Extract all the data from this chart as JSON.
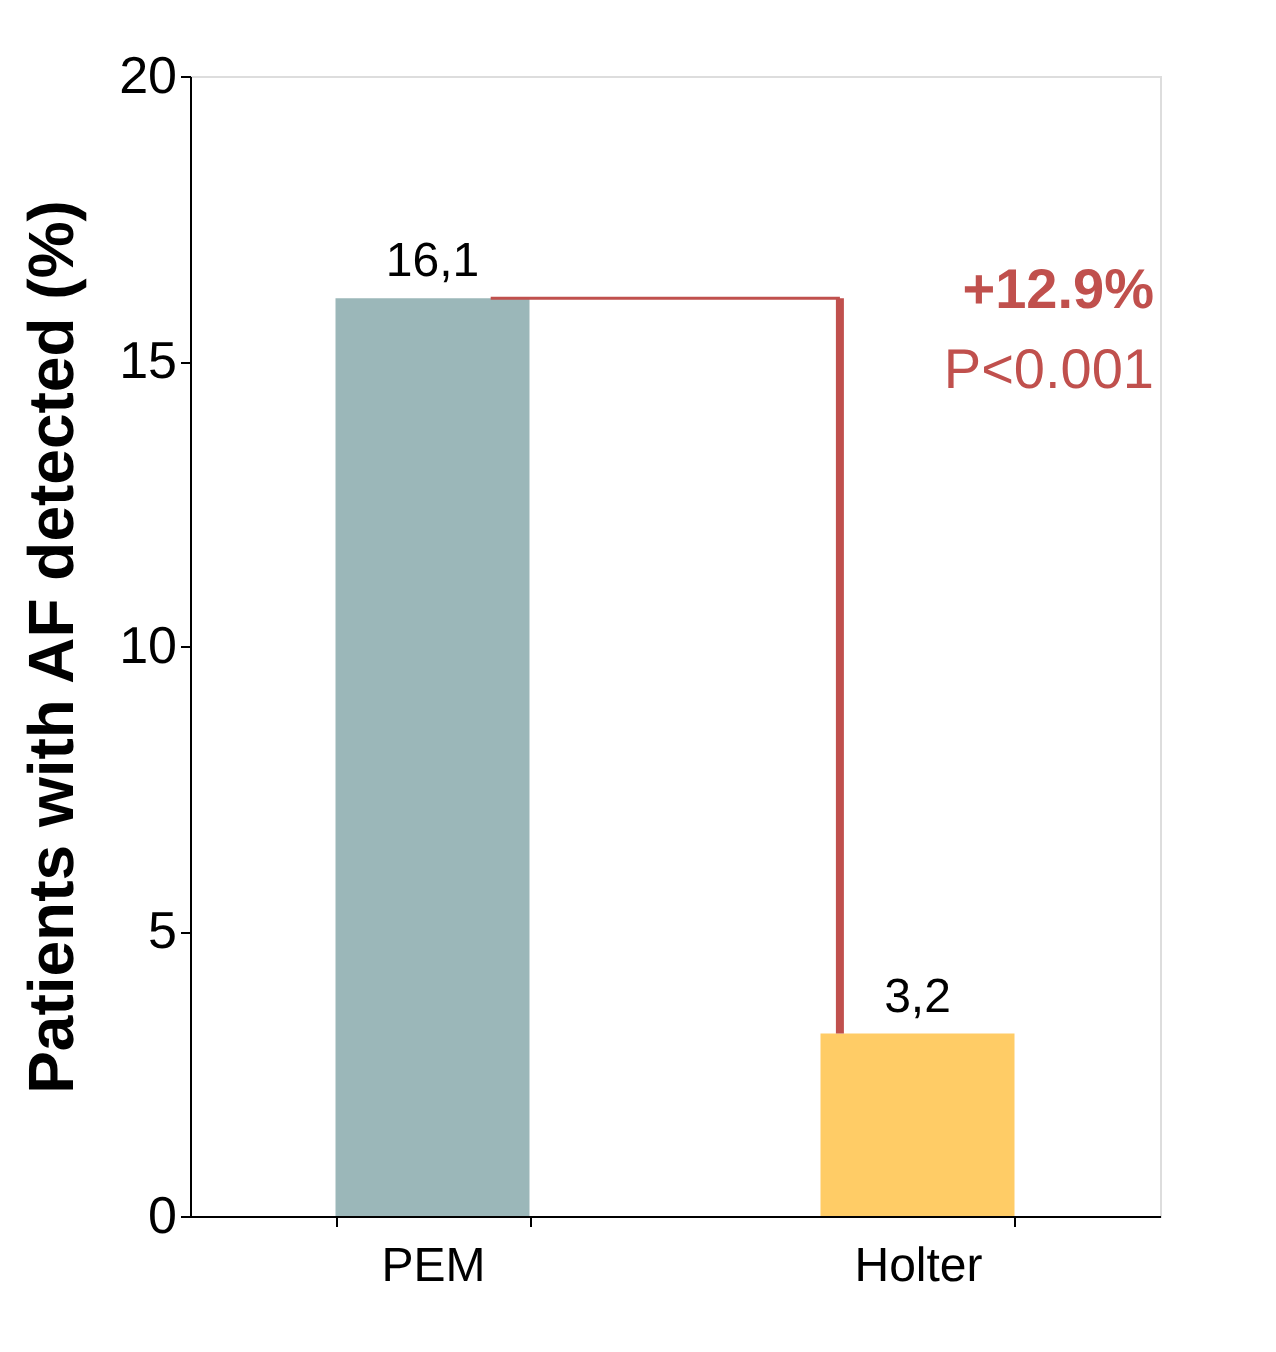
{
  "chart_data": {
    "type": "bar",
    "ylabel": "Patients with AF detected (%)",
    "categories": [
      "PEM",
      "Holter"
    ],
    "values": [
      16.1,
      3.2
    ],
    "colors": [
      "#9bb7b9",
      "#ffcc66"
    ],
    "value_labels": [
      "16,1",
      "3,2"
    ],
    "ylim": [
      0,
      20
    ],
    "yticks": [
      0,
      5,
      10,
      15,
      20
    ],
    "grid": false,
    "legend": false,
    "annotations": [
      "+12.9%",
      "P<0.001"
    ],
    "ref_lines": [
      {
        "axis": "y",
        "value": 16.1,
        "color": "#c0504d"
      }
    ]
  }
}
